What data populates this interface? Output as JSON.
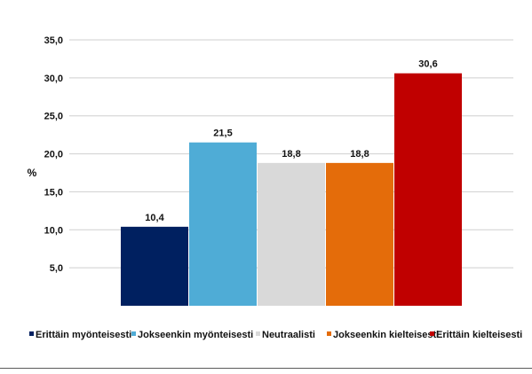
{
  "chart_data": {
    "type": "bar",
    "ylabel": "%",
    "ylim": [
      0,
      35
    ],
    "yticks": [
      "5,0",
      "10,0",
      "15,0",
      "20,0",
      "25,0",
      "30,0",
      "35,0"
    ],
    "grid": true,
    "legend_position": "bottom",
    "series": [
      {
        "name": "Erittäin myönteisesti",
        "value": 10.4,
        "label": "10,4",
        "color": "#002060"
      },
      {
        "name": "Jokseenkin myönteisesti",
        "value": 21.5,
        "label": "21,5",
        "color": "#4FACD6"
      },
      {
        "name": "Neutraalisti",
        "value": 18.8,
        "label": "18,8",
        "color": "#D9D9D9"
      },
      {
        "name": "Jokseenkin kielteisesti",
        "value": 18.8,
        "label": "18,8",
        "color": "#E46C0A"
      },
      {
        "name": "Erittäin kielteisesti",
        "value": 30.6,
        "label": "30,6",
        "color": "#C00000"
      }
    ]
  }
}
